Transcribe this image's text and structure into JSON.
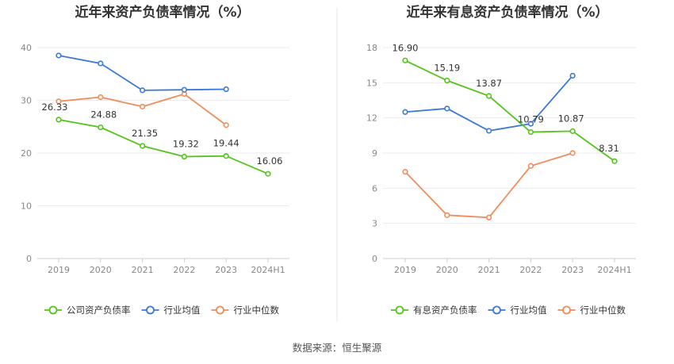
{
  "source_note": "数据来源：恒生聚源",
  "chart_data": [
    {
      "type": "line",
      "title": "近年来资产负债率情况（%）",
      "categories": [
        "2019",
        "2020",
        "2021",
        "2022",
        "2023",
        "2024H1"
      ],
      "ylim": [
        0,
        40
      ],
      "yticks": [
        0,
        10,
        20,
        30,
        40
      ],
      "grid": true,
      "legend_position": "bottom",
      "series": [
        {
          "name": "公司资产负债率",
          "color": "#52c41a",
          "labels": true,
          "values": [
            26.33,
            24.88,
            21.35,
            19.32,
            19.44,
            16.06
          ]
        },
        {
          "name": "行业均值",
          "color": "#3c78d8",
          "labels": false,
          "values": [
            38.5,
            37.0,
            31.9,
            32.0,
            32.1,
            null
          ]
        },
        {
          "name": "行业中位数",
          "color": "#f08c5a",
          "labels": false,
          "values": [
            29.8,
            30.6,
            28.8,
            31.2,
            25.3,
            null
          ]
        }
      ]
    },
    {
      "type": "line",
      "title": "近年来有息资产负债率情况（%）",
      "categories": [
        "2019",
        "2020",
        "2021",
        "2022",
        "2023",
        "2024H1"
      ],
      "ylim": [
        0,
        18
      ],
      "yticks": [
        0,
        3,
        6,
        9,
        12,
        15,
        18
      ],
      "grid": true,
      "legend_position": "bottom",
      "series": [
        {
          "name": "有息资产负债率",
          "color": "#52c41a",
          "labels": true,
          "values": [
            16.9,
            15.19,
            13.87,
            10.79,
            10.87,
            8.31
          ]
        },
        {
          "name": "行业均值",
          "color": "#3c78d8",
          "labels": false,
          "values": [
            12.5,
            12.8,
            10.9,
            11.5,
            15.6,
            null
          ]
        },
        {
          "name": "行业中位数",
          "color": "#f08c5a",
          "labels": false,
          "values": [
            7.4,
            3.7,
            3.5,
            7.9,
            9.0,
            null
          ]
        }
      ]
    }
  ]
}
